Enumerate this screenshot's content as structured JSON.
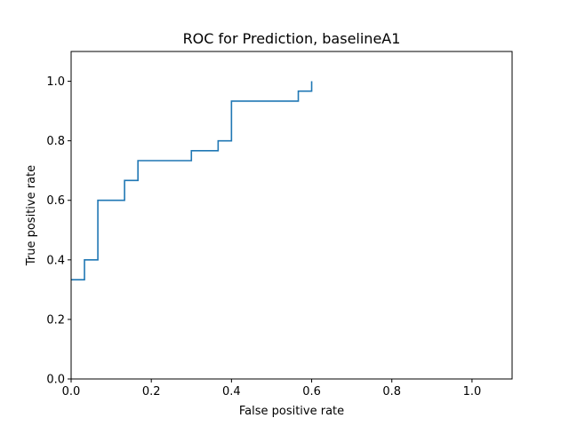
{
  "chart_data": {
    "type": "line",
    "title": "ROC for Prediction, baselineA1",
    "xlabel": "False positive rate",
    "ylabel": "True positive rate",
    "xlim": [
      0,
      1.1
    ],
    "ylim": [
      0,
      1.1
    ],
    "x_ticks": [
      "0.0",
      "0.2",
      "0.4",
      "0.6",
      "0.8",
      "1.0"
    ],
    "y_ticks": [
      "0.0",
      "0.2",
      "0.4",
      "0.6",
      "0.8",
      "1.0"
    ],
    "grid": false,
    "line_color": "#1f77b4",
    "series": [
      {
        "x": [
          0.0,
          0.0,
          0.0333,
          0.0333,
          0.0667,
          0.0667,
          0.1333,
          0.1333,
          0.1667,
          0.1667,
          0.3,
          0.3,
          0.3667,
          0.3667,
          0.4,
          0.4,
          0.5667,
          0.5667,
          0.6,
          0.6
        ],
        "y": [
          0.3333,
          0.3333,
          0.3333,
          0.4,
          0.4,
          0.6,
          0.6,
          0.6667,
          0.6667,
          0.7333,
          0.7333,
          0.7667,
          0.7667,
          0.8,
          0.8,
          0.9333,
          0.9333,
          0.9667,
          0.9667,
          1.0
        ]
      }
    ]
  }
}
